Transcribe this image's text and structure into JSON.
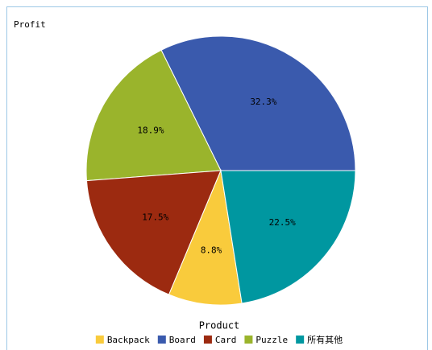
{
  "chart_data": {
    "type": "pie",
    "title": "Profit",
    "legend_title": "Product",
    "categories": [
      "Backpack",
      "Board",
      "Card",
      "Puzzle",
      "所有其他"
    ],
    "values": [
      8.8,
      32.3,
      17.5,
      18.9,
      22.5
    ],
    "value_labels": [
      "8.8%",
      "32.3%",
      "17.5%",
      "18.9%",
      "22.5%"
    ],
    "colors": [
      "#f9cb3c",
      "#3a5aad",
      "#9c2a10",
      "#9ab42c",
      "#0097a0"
    ],
    "legend": "bottom"
  }
}
